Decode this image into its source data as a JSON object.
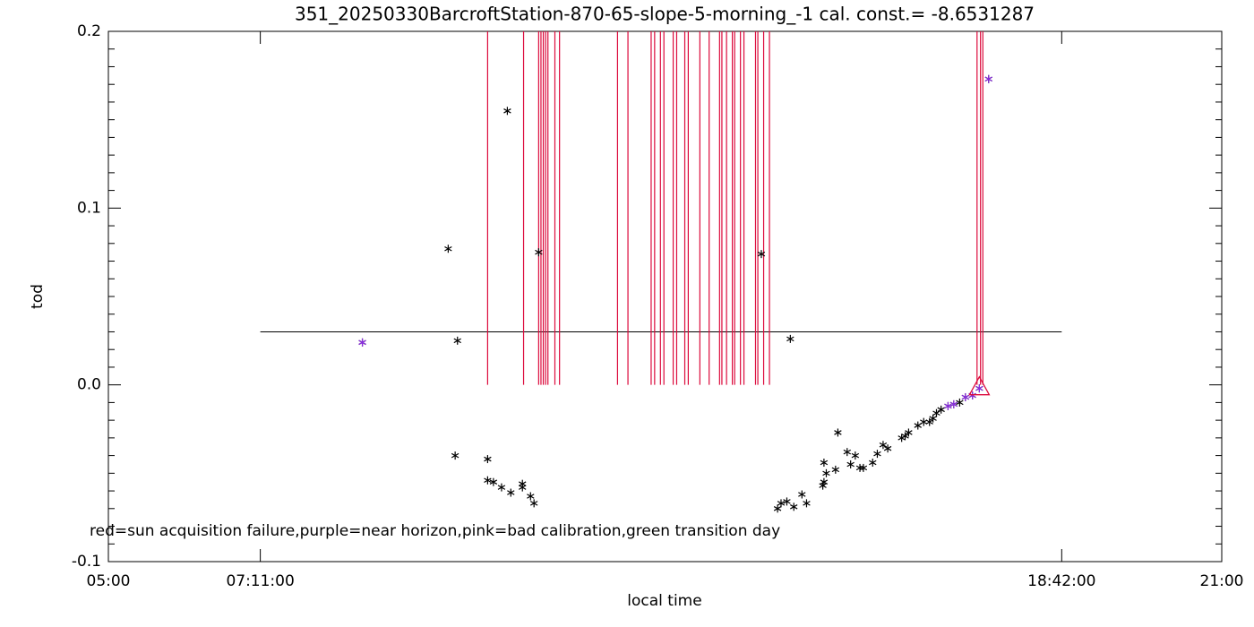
{
  "chart_data": {
    "type": "scatter",
    "title": "351_20250330BarcroftStation-870-65-slope-5-morning_-1 cal. const.= -8.6531287",
    "x_label": "local time",
    "y_label": "tod",
    "annotation": "red=sun acquisition failure,purple=near horizon,pink=bad calibration,green transition day",
    "xlim": [
      300,
      1260
    ],
    "ylim": [
      -0.1,
      0.2
    ],
    "xticks": [
      {
        "value": 300,
        "label": "05:00"
      },
      {
        "value": 431,
        "label": "07:11:00"
      },
      {
        "value": 1122,
        "label": "18:42:00"
      },
      {
        "value": 1260,
        "label": "21:00"
      }
    ],
    "yticks": [
      -0.1,
      {
        "value": 0,
        "label": "0.0"
      },
      0.1,
      0.2
    ],
    "reference_line": {
      "y": 0.03,
      "x": [
        431,
        1122
      ],
      "color": "#000000"
    },
    "vlines": {
      "color": "#dc0a3c",
      "y0": 0,
      "x": [
        627,
        658,
        671,
        673,
        675,
        677,
        679,
        685,
        689,
        739,
        748,
        768,
        771,
        776,
        779,
        787,
        790,
        797,
        800,
        810,
        818,
        827,
        829,
        833,
        838,
        840,
        845,
        848,
        858,
        860,
        865,
        870,
        1049,
        1052,
        1054
      ]
    },
    "series": [
      {
        "marker": "asterisk",
        "color": "#000000",
        "x": [
          519,
          593,
          601,
          599,
          644,
          671,
          627,
          627,
          632,
          639,
          647,
          657,
          657,
          664,
          667,
          863,
          888,
          877,
          880,
          885,
          891,
          898,
          902,
          916,
          917,
          917,
          919,
          929,
          927,
          937,
          940,
          944,
          948,
          951,
          959,
          963,
          968,
          972,
          984,
          987,
          990,
          998,
          1003,
          1008,
          1011,
          1014,
          1018,
          1024,
          1029,
          1034,
          1039,
          1045,
          1051,
          1059
        ],
        "values": [
          0.024,
          0.077,
          0.025,
          -0.04,
          0.155,
          0.075,
          -0.042,
          -0.054,
          -0.055,
          -0.058,
          -0.061,
          -0.058,
          -0.056,
          -0.063,
          -0.067,
          0.074,
          0.026,
          -0.07,
          -0.067,
          -0.066,
          -0.069,
          -0.062,
          -0.067,
          -0.057,
          -0.055,
          -0.044,
          -0.05,
          -0.027,
          -0.048,
          -0.038,
          -0.045,
          -0.04,
          -0.047,
          -0.047,
          -0.044,
          -0.039,
          -0.034,
          -0.036,
          -0.03,
          -0.029,
          -0.027,
          -0.023,
          -0.021,
          -0.021,
          -0.019,
          -0.016,
          -0.014,
          -0.012,
          -0.011,
          -0.01,
          -0.007,
          -0.006,
          -0.002,
          0.173
        ]
      },
      {
        "marker": "asterisk",
        "color": "#8a2be2",
        "x": [
          519,
          1024,
          1029,
          1039,
          1045,
          1051,
          1059
        ],
        "values": [
          0.024,
          -0.012,
          -0.011,
          -0.007,
          -0.006,
          -0.002,
          0.173
        ]
      },
      {
        "marker": "triangle",
        "color": "#dc0a3c",
        "x": [
          1051
        ],
        "values": [
          0
        ]
      }
    ]
  }
}
